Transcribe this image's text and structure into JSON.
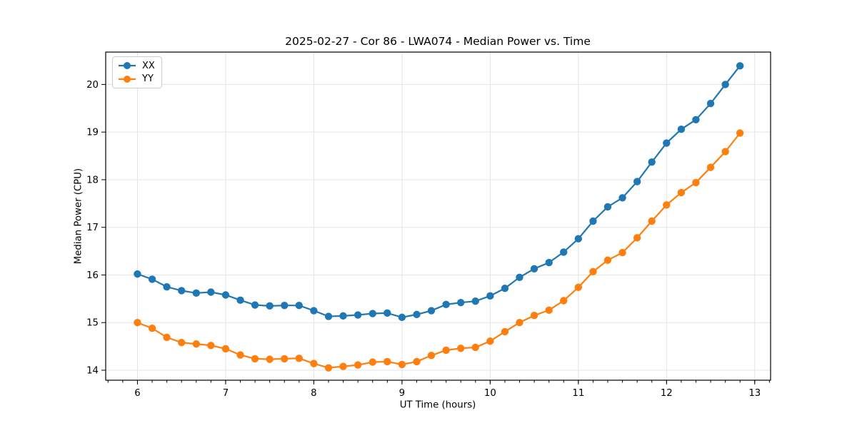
{
  "chart_data": {
    "type": "line",
    "title": "2025-02-27 - Cor 86 - LWA074 - Median Power vs. Time",
    "xlabel": "UT Time (hours)",
    "ylabel": "Median Power (CPU)",
    "xlim": [
      5.64,
      13.18
    ],
    "ylim": [
      13.79,
      20.68
    ],
    "xticks": [
      6,
      7,
      8,
      9,
      10,
      11,
      12,
      13
    ],
    "yticks": [
      14,
      15,
      16,
      17,
      18,
      19,
      20
    ],
    "x_minor_step": 0.16667,
    "grid": true,
    "grid_color": "#e3e3e3",
    "legend_position": "upper-left",
    "x": [
      6.0,
      6.167,
      6.333,
      6.5,
      6.667,
      6.833,
      7.0,
      7.167,
      7.333,
      7.5,
      7.667,
      7.833,
      8.0,
      8.167,
      8.333,
      8.5,
      8.667,
      8.833,
      9.0,
      9.167,
      9.333,
      9.5,
      9.667,
      9.833,
      10.0,
      10.167,
      10.333,
      10.5,
      10.667,
      10.833,
      11.0,
      11.167,
      11.333,
      11.5,
      11.667,
      11.833,
      12.0,
      12.167,
      12.333,
      12.5,
      12.667,
      12.833
    ],
    "series": [
      {
        "name": "XX",
        "color": "#1f77b4",
        "values": [
          16.02,
          15.91,
          15.75,
          15.67,
          15.62,
          15.64,
          15.58,
          15.47,
          15.37,
          15.35,
          15.36,
          15.36,
          15.25,
          15.13,
          15.14,
          15.16,
          15.19,
          15.2,
          15.11,
          15.17,
          15.25,
          15.38,
          15.42,
          15.45,
          15.56,
          15.72,
          15.95,
          16.13,
          16.26,
          16.48,
          16.76,
          17.13,
          17.43,
          17.62,
          17.96,
          18.37,
          18.77,
          19.06,
          19.26,
          19.6,
          20.0,
          20.39
        ]
      },
      {
        "name": "YY",
        "color": "#ff7f0e",
        "values": [
          15.0,
          14.88,
          14.69,
          14.58,
          14.55,
          14.52,
          14.45,
          14.32,
          14.24,
          14.23,
          14.24,
          14.25,
          14.14,
          14.05,
          14.08,
          14.11,
          14.17,
          14.18,
          14.12,
          14.18,
          14.31,
          14.42,
          14.46,
          14.48,
          14.61,
          14.81,
          15.0,
          15.15,
          15.26,
          15.46,
          15.74,
          16.07,
          16.31,
          16.47,
          16.78,
          17.13,
          17.47,
          17.73,
          17.94,
          18.26,
          18.59,
          18.98
        ]
      }
    ]
  }
}
